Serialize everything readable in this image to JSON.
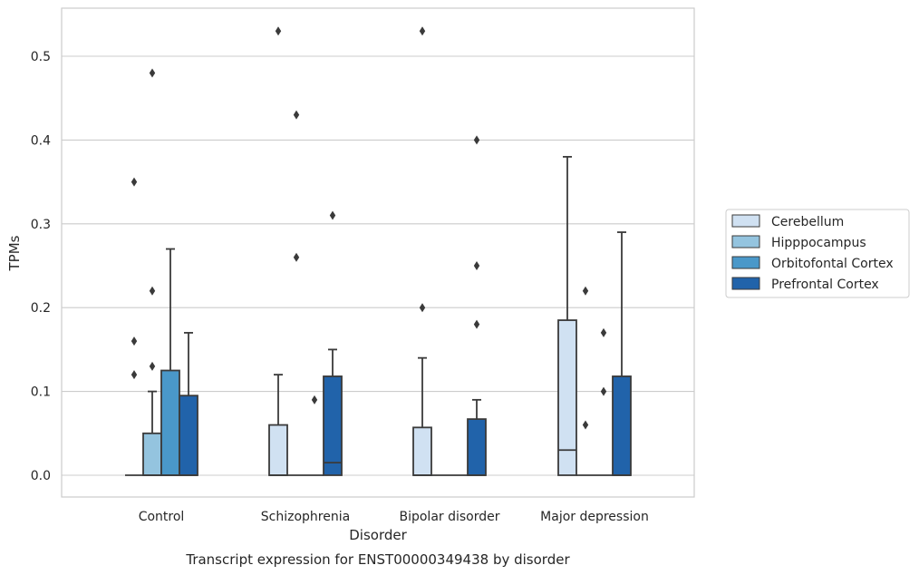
{
  "chart_data": {
    "type": "box",
    "title": "",
    "caption": "Transcript expression for ENST00000349438 by disorder",
    "xlabel": "Disorder",
    "ylabel": "TPMs",
    "ylim": [
      -0.025,
      0.557
    ],
    "yticks": [
      "0.0",
      "0.1",
      "0.2",
      "0.3",
      "0.4",
      "0.5"
    ],
    "categories": [
      "Control",
      "Schizophrenia",
      "Bipolar disorder",
      "Major depression"
    ],
    "grid": "horizontal",
    "legend_position": "right",
    "series": [
      {
        "name": "Cerebellum",
        "color": "#d0e1f2",
        "boxes": [
          {
            "q1": 0,
            "median": 0,
            "q3": 0,
            "whisker_low": 0,
            "whisker_high": 0,
            "outliers": [
              0.35,
              0.16,
              0.12
            ]
          },
          {
            "q1": 0,
            "median": 0,
            "q3": 0.06,
            "whisker_low": 0,
            "whisker_high": 0.12,
            "outliers": [
              0.53
            ]
          },
          {
            "q1": 0,
            "median": 0,
            "q3": 0.057,
            "whisker_low": 0,
            "whisker_high": 0.14,
            "outliers": [
              0.53,
              0.2
            ]
          },
          {
            "q1": 0,
            "median": 0.03,
            "q3": 0.185,
            "whisker_low": 0,
            "whisker_high": 0.38,
            "outliers": []
          }
        ]
      },
      {
        "name": "Hipppocampus",
        "color": "#94c4df",
        "boxes": [
          {
            "q1": 0,
            "median": 0,
            "q3": 0.05,
            "whisker_low": 0,
            "whisker_high": 0.1,
            "outliers": [
              0.48,
              0.22,
              0.13
            ]
          },
          {
            "q1": 0,
            "median": 0,
            "q3": 0,
            "whisker_low": 0,
            "whisker_high": 0,
            "outliers": [
              0.43,
              0.26
            ]
          },
          {
            "q1": 0,
            "median": 0,
            "q3": 0,
            "whisker_low": 0,
            "whisker_high": 0,
            "outliers": []
          },
          {
            "q1": 0,
            "median": 0,
            "q3": 0,
            "whisker_low": 0,
            "whisker_high": 0,
            "outliers": [
              0.22,
              0.06
            ]
          }
        ]
      },
      {
        "name": "Orbitofontal Cortex",
        "color": "#4a98c9",
        "boxes": [
          {
            "q1": 0,
            "median": 0,
            "q3": 0.125,
            "whisker_low": 0,
            "whisker_high": 0.27,
            "outliers": []
          },
          {
            "q1": 0,
            "median": 0,
            "q3": 0,
            "whisker_low": 0,
            "whisker_high": 0,
            "outliers": [
              0.09
            ]
          },
          {
            "q1": 0,
            "median": 0,
            "q3": 0,
            "whisker_low": 0,
            "whisker_high": 0,
            "outliers": []
          },
          {
            "q1": 0,
            "median": 0,
            "q3": 0,
            "whisker_low": 0,
            "whisker_high": 0,
            "outliers": [
              0.17,
              0.1
            ]
          }
        ]
      },
      {
        "name": "Prefrontal Cortex",
        "color": "#2163aa",
        "boxes": [
          {
            "q1": 0,
            "median": 0,
            "q3": 0.095,
            "whisker_low": 0,
            "whisker_high": 0.17,
            "outliers": []
          },
          {
            "q1": 0,
            "median": 0.015,
            "q3": 0.118,
            "whisker_low": 0,
            "whisker_high": 0.15,
            "outliers": [
              0.31
            ]
          },
          {
            "q1": 0,
            "median": 0,
            "q3": 0.067,
            "whisker_low": 0,
            "whisker_high": 0.09,
            "outliers": [
              0.4,
              0.25,
              0.18
            ]
          },
          {
            "q1": 0,
            "median": 0,
            "q3": 0.118,
            "whisker_low": 0,
            "whisker_high": 0.29,
            "outliers": []
          }
        ]
      }
    ]
  }
}
